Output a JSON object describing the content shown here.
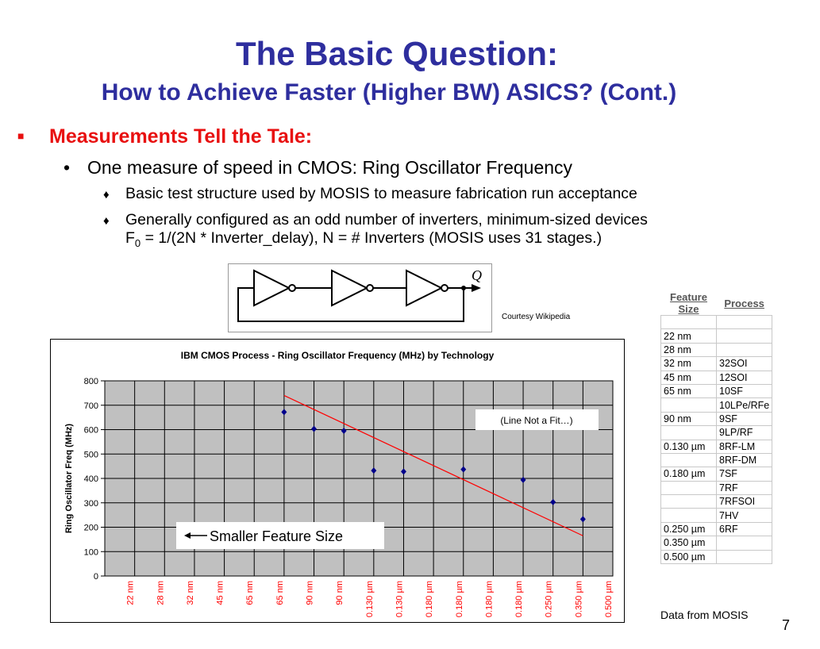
{
  "slide": {
    "title": "The Basic Question:",
    "subtitle": "How to Achieve Faster (Higher BW) ASICS? (Cont.)",
    "bullet1": "Measurements Tell the Tale:",
    "bullet2": "One measure of speed in CMOS:  Ring Oscillator Frequency",
    "bullet3a": "Basic test structure used by MOSIS to measure fabrication run acceptance",
    "bullet3b_line1": "Generally configured as an odd number of inverters, minimum-sized devices",
    "bullet3b_f": "F",
    "bullet3b_sub": "0",
    "bullet3b_line2": " = 1/(2N * Inverter_delay), N = # Inverters (MOSIS uses 31 stages.)",
    "courtesy": "Courtesy Wikipedia",
    "ring_output_label": "Q",
    "source_note": "Data from MOSIS",
    "page_number": "7"
  },
  "colors": {
    "title": "#2e2e9e",
    "bullet1": "#e81010",
    "plot_bg": "#c0c0c0",
    "points": "#00008b",
    "trend": "#ff0000",
    "xtick": "#ff0000"
  },
  "table": {
    "headers": [
      "Feature Size",
      "Process"
    ],
    "rows": [
      [
        "22 nm",
        ""
      ],
      [
        "28 nm",
        ""
      ],
      [
        "32 nm",
        "32SOI"
      ],
      [
        "45 nm",
        "12SOI"
      ],
      [
        "65 nm",
        "10SF"
      ],
      [
        "",
        "10LPe/RFe"
      ],
      [
        "90 nm",
        "9SF"
      ],
      [
        "",
        "9LP/RF"
      ],
      [
        "0.130 µm",
        "8RF-LM"
      ],
      [
        "",
        "8RF-DM"
      ],
      [
        "0.180 µm",
        "7SF"
      ],
      [
        "",
        "7RF"
      ],
      [
        "",
        "7RFSOI"
      ],
      [
        "",
        "7HV"
      ],
      [
        "0.250 µm",
        "6RF"
      ],
      [
        "0.350 µm",
        ""
      ],
      [
        "0.500 µm",
        ""
      ]
    ]
  },
  "chart_data": {
    "type": "scatter",
    "title": "IBM CMOS Process - Ring Oscillator Frequency (MHz) by Technology",
    "ylabel": "Ring Oscillator Freq (MHz)",
    "xlabel": "",
    "ylim": [
      0,
      800
    ],
    "yticks": [
      0,
      100,
      200,
      300,
      400,
      500,
      600,
      700,
      800
    ],
    "grid": true,
    "categories": [
      "22 nm",
      "28 nm",
      "32 nm",
      "45 nm",
      "65 nm",
      "65 nm",
      "90 nm",
      "90 nm",
      "0.130 µm",
      "0.130 µm",
      "0.180 µm",
      "0.180 µm",
      "0.180 µm",
      "0.180 µm",
      "0.250 µm",
      "0.350 µm",
      "0.500 µm"
    ],
    "points": [
      {
        "x": "65 nm",
        "index": 5,
        "y": 672
      },
      {
        "x": "90 nm",
        "index": 6,
        "y": 603
      },
      {
        "x": "90 nm",
        "index": 7,
        "y": 595
      },
      {
        "x": "0.130 µm",
        "index": 8,
        "y": 432
      },
      {
        "x": "0.130 µm",
        "index": 9,
        "y": 428
      },
      {
        "x": "0.180 µm",
        "index": 11,
        "y": 437
      },
      {
        "x": "0.180 µm",
        "index": 13,
        "y": 394
      },
      {
        "x": "0.250 µm",
        "index": 14,
        "y": 303
      },
      {
        "x": "0.350 µm",
        "index": 15,
        "y": 233
      }
    ],
    "trend_line": {
      "start": {
        "index": 5,
        "y": 740
      },
      "end": {
        "index": 15,
        "y": 165
      }
    },
    "annotations": {
      "line_note": "(Line Not a Fit…)",
      "arrow_note": "Smaller Feature Size"
    }
  }
}
